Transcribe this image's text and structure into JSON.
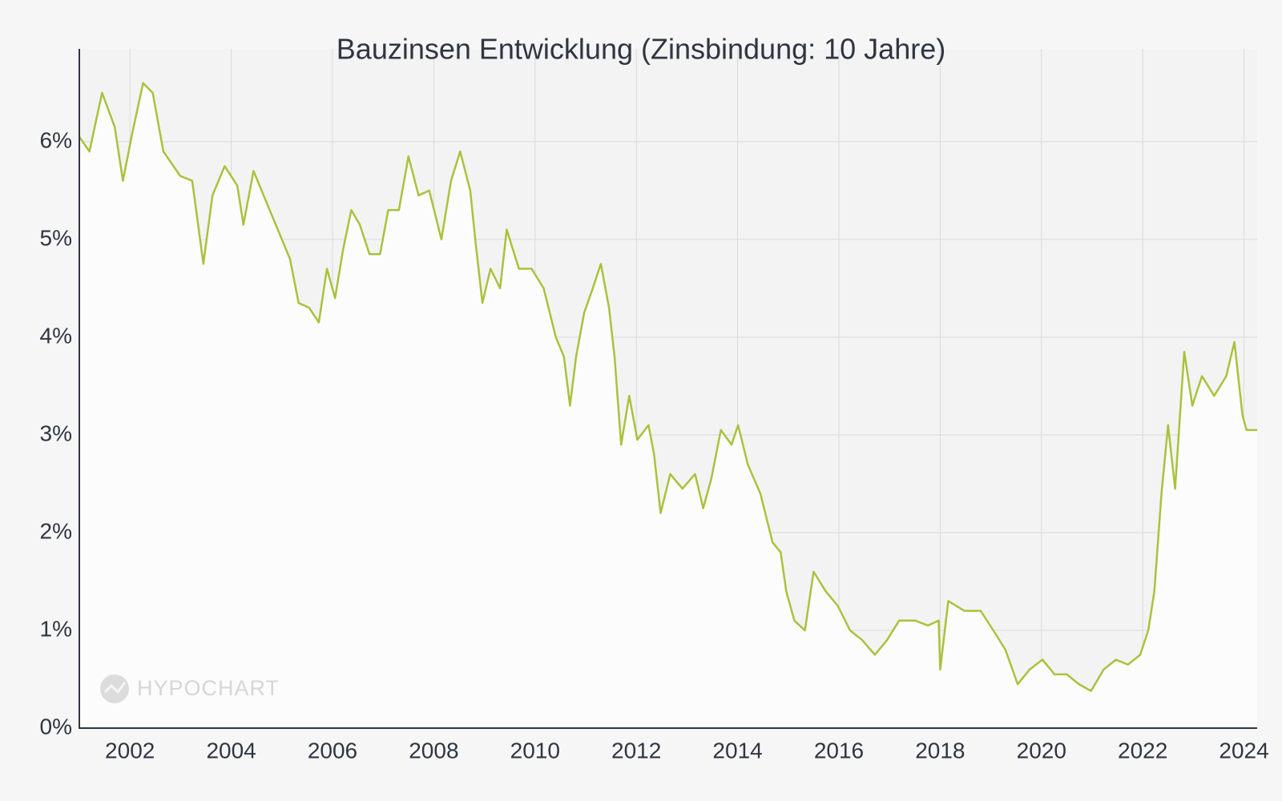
{
  "chart_data": {
    "type": "line",
    "title": "Bauzinsen Entwicklung (Zinsbindung: 10 Jahre)",
    "watermark": "HYPOCHART",
    "x": [
      2001.0,
      2001.2,
      2001.45,
      2001.7,
      2001.86,
      2002.05,
      2002.26,
      2002.45,
      2002.66,
      2002.99,
      2003.23,
      2003.45,
      2003.63,
      2003.87,
      2004.12,
      2004.24,
      2004.44,
      2004.76,
      2005.0,
      2005.16,
      2005.33,
      2005.54,
      2005.73,
      2005.89,
      2006.05,
      2006.21,
      2006.37,
      2006.54,
      2006.73,
      2006.94,
      2007.1,
      2007.31,
      2007.5,
      2007.7,
      2007.91,
      2008.15,
      2008.34,
      2008.52,
      2008.72,
      2008.83,
      2008.96,
      2009.12,
      2009.31,
      2009.44,
      2009.68,
      2009.93,
      2010.17,
      2010.41,
      2010.57,
      2010.69,
      2010.81,
      2010.97,
      2011.14,
      2011.3,
      2011.46,
      2011.57,
      2011.7,
      2011.86,
      2012.02,
      2012.24,
      2012.35,
      2012.48,
      2012.67,
      2012.91,
      2013.16,
      2013.32,
      2013.48,
      2013.67,
      2013.88,
      2014.01,
      2014.2,
      2014.45,
      2014.69,
      2014.85,
      2014.96,
      2015.12,
      2015.33,
      2015.5,
      2015.74,
      2015.98,
      2016.22,
      2016.46,
      2016.71,
      2016.95,
      2017.19,
      2017.51,
      2017.76,
      2017.97,
      2018.0,
      2018.16,
      2018.48,
      2018.8,
      2019.05,
      2019.29,
      2019.53,
      2019.77,
      2020.02,
      2020.26,
      2020.5,
      2020.74,
      2020.98,
      2021.23,
      2021.47,
      2021.71,
      2021.95,
      2022.11,
      2022.23,
      2022.37,
      2022.5,
      2022.64,
      2022.82,
      2022.98,
      2023.17,
      2023.41,
      2023.65,
      2023.81,
      2023.97,
      2024.05,
      2024.26
    ],
    "series": [
      {
        "name": "Bauzinsen",
        "color": "#a9c23c",
        "values": [
          6.05,
          5.9,
          6.5,
          6.15,
          5.6,
          6.1,
          6.6,
          6.5,
          5.9,
          5.65,
          5.6,
          4.75,
          5.45,
          5.75,
          5.55,
          5.15,
          5.7,
          5.3,
          5.0,
          4.8,
          4.35,
          4.3,
          4.15,
          4.7,
          4.4,
          4.9,
          5.3,
          5.15,
          4.85,
          4.85,
          5.3,
          5.3,
          5.85,
          5.45,
          5.5,
          5.0,
          5.6,
          5.9,
          5.5,
          4.95,
          4.35,
          4.7,
          4.5,
          5.1,
          4.7,
          4.7,
          4.5,
          4.0,
          3.8,
          3.3,
          3.8,
          4.25,
          4.5,
          4.75,
          4.3,
          3.8,
          2.9,
          3.4,
          2.95,
          3.1,
          2.8,
          2.2,
          2.6,
          2.45,
          2.6,
          2.25,
          2.55,
          3.05,
          2.9,
          3.1,
          2.7,
          2.4,
          1.9,
          1.8,
          1.4,
          1.1,
          1.0,
          1.6,
          1.4,
          1.25,
          1.0,
          0.9,
          0.75,
          0.9,
          1.1,
          1.1,
          1.05,
          1.1,
          0.6,
          1.3,
          1.2,
          1.2,
          1.0,
          0.8,
          0.45,
          0.6,
          0.7,
          0.55,
          0.55,
          0.45,
          0.38,
          0.6,
          0.7,
          0.65,
          0.75,
          1.0,
          1.4,
          2.4,
          3.1,
          2.45,
          3.85,
          3.3,
          3.6,
          3.4,
          3.6,
          3.95,
          3.2,
          3.05,
          3.05
        ]
      }
    ],
    "xlim": [
      2001.0,
      2024.26
    ],
    "xticks": [
      2002,
      2004,
      2006,
      2008,
      2010,
      2012,
      2014,
      2016,
      2018,
      2020,
      2022,
      2024
    ],
    "ylim": [
      0,
      6.95
    ],
    "yticks": [
      {
        "value": 0,
        "label": "0%"
      },
      {
        "value": 1,
        "label": "1%"
      },
      {
        "value": 2,
        "label": "2%"
      },
      {
        "value": 3,
        "label": "3%"
      },
      {
        "value": 4,
        "label": "4%"
      },
      {
        "value": 5,
        "label": "5%"
      },
      {
        "value": 6,
        "label": "6%"
      }
    ],
    "grid": true
  }
}
